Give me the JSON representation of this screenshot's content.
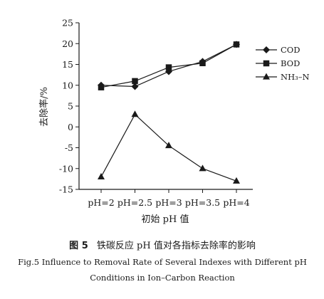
{
  "chart_data": {
    "type": "line",
    "categories": [
      "pH=2",
      "pH=2.5",
      "pH=3",
      "pH=3.5",
      "pH=4"
    ],
    "series": [
      {
        "name": "COD",
        "marker": "diamond",
        "values": [
          10.0,
          9.7,
          13.3,
          15.7,
          19.8
        ]
      },
      {
        "name": "BOD",
        "marker": "square",
        "values": [
          9.5,
          11.0,
          14.3,
          15.3,
          19.8
        ]
      },
      {
        "name": "NH₃–N",
        "marker": "triangle",
        "values": [
          -12.0,
          3.0,
          -4.5,
          -10.0,
          -13.0
        ]
      }
    ],
    "yticks": [
      25,
      20,
      15,
      10,
      5,
      0,
      -5,
      -10,
      -15
    ],
    "ylim": [
      -15,
      25
    ],
    "xlabel": "初始 pH 值",
    "ylabel": "去除率/%",
    "legend_position": "top-right",
    "grid": false
  },
  "caption": {
    "cn_prefix": "图 5",
    "cn_text": "铁碳反应 pH 值对各指标去除率的影响",
    "en_line1": "Fig.5   Influence to Removal Rate of Several Indexes with Different pH",
    "en_line2": "Conditions in Ion–Carbon Reaction"
  }
}
